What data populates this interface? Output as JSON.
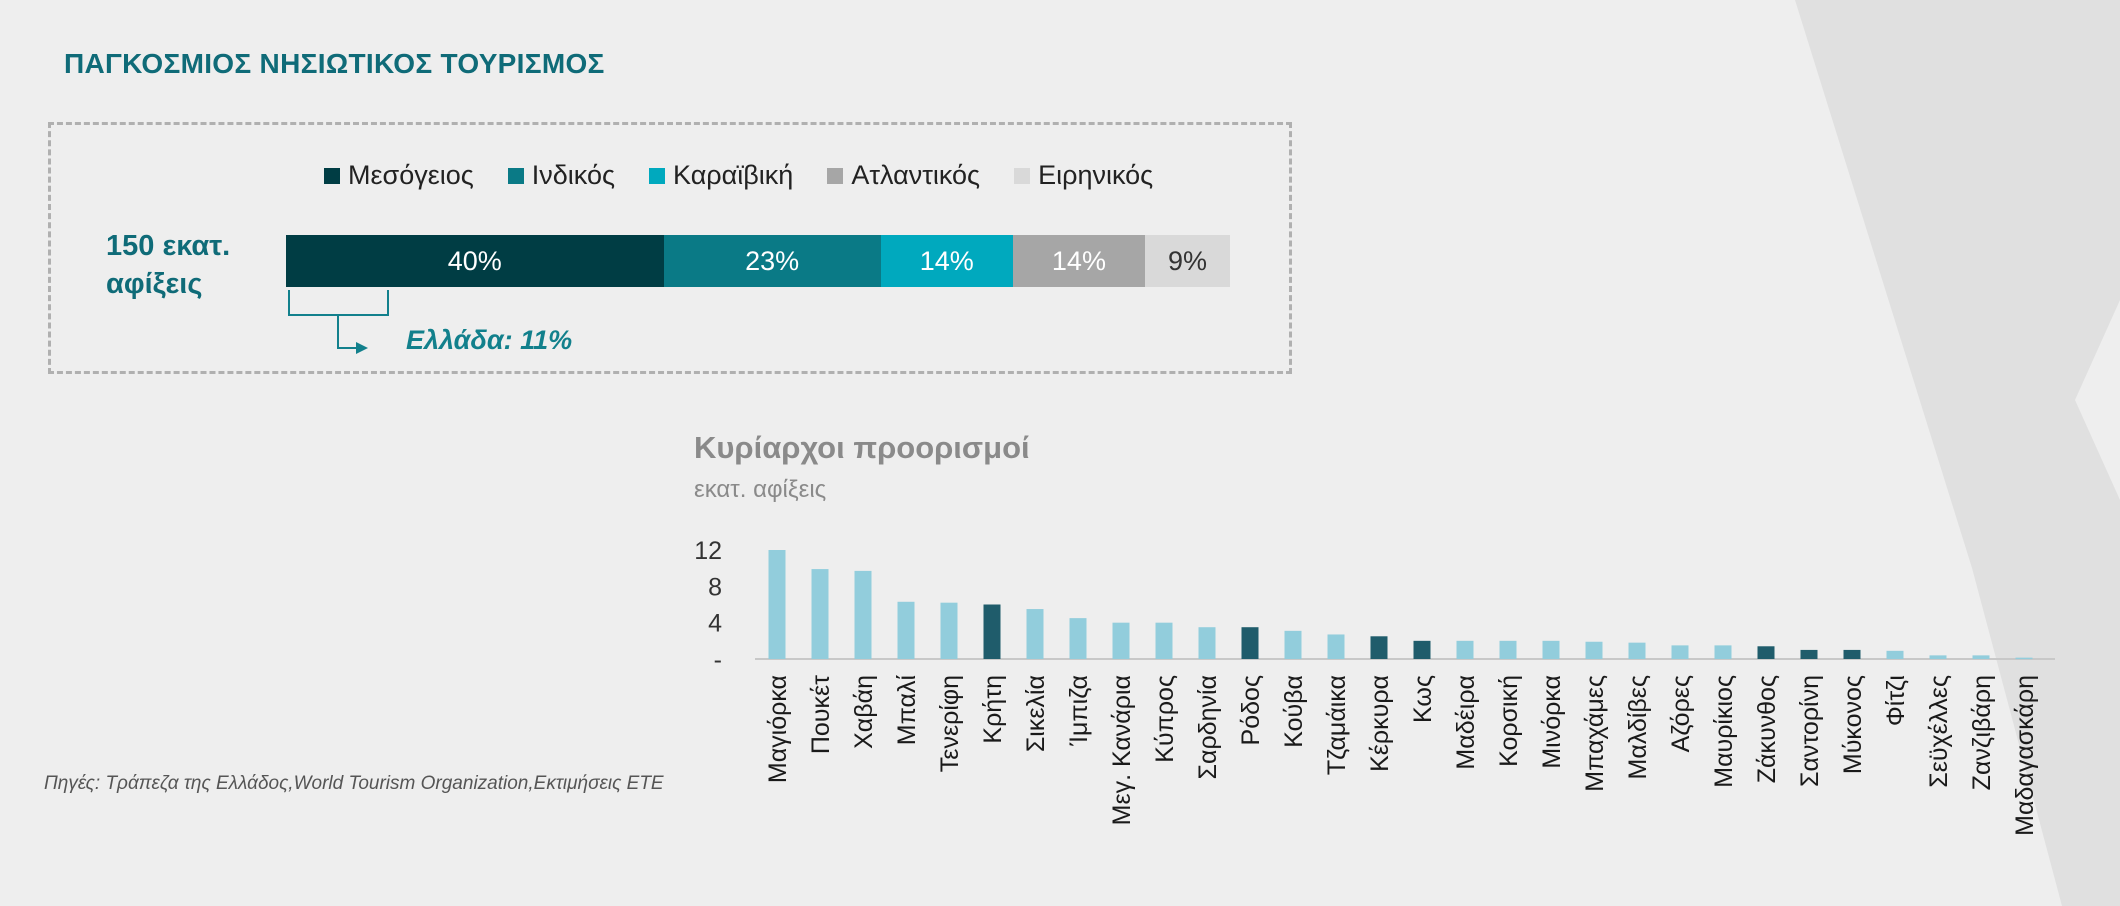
{
  "header": {
    "title": "ΠΑΓΚΟΣΜΙΟΣ ΝΗΣΙΩΤΙΚΟΣ ΤΟΥΡΙΣΜΟΣ"
  },
  "share_panel": {
    "total_label": "150 εκατ. αφίξεις",
    "greece_label": "Ελλάδα: 11%"
  },
  "destinations_panel": {
    "title": "Κυρίαρχοι προορισμοί",
    "subtitle": "εκατ. αφίξεις"
  },
  "footer": {
    "source": "Πηγές: Τράπεζα της Ελλάδος,World Tourism Organization,Εκτιμήσεις ΕΤΕ"
  },
  "colors": {
    "brand_teal": "#0f6b78",
    "bar_light": "#92cddc",
    "bar_greek": "#1f5c6b"
  },
  "chart_data": [
    {
      "type": "bar",
      "orientation": "horizontal-stacked-100",
      "title": "150 εκατ. αφίξεις",
      "categories": [
        "Μεσόγειος",
        "Ινδικός",
        "Καραϊβική",
        "Ατλαντικός",
        "Ειρηνικός"
      ],
      "values": [
        40,
        23,
        14,
        14,
        9
      ],
      "labels": [
        "40%",
        "23%",
        "14%",
        "14%",
        "9%"
      ],
      "colors": [
        "#003d44",
        "#0a7a86",
        "#00a9be",
        "#a6a6a6",
        "#d9d9d9"
      ],
      "legend": "top",
      "annotation": "Ελλάδα: 11%"
    },
    {
      "type": "bar",
      "title": "Κυρίαρχοι προορισμοί",
      "ylabel": "εκατ. αφίξεις",
      "ylim": [
        0,
        12
      ],
      "yticks": [
        0,
        4,
        8,
        12
      ],
      "ytick_labels": [
        "-",
        "4",
        "8",
        "12"
      ],
      "categories": [
        "Μαγιόρκα",
        "Πουκέτ",
        "Χαβάη",
        "Μπαλί",
        "Τενερίφη",
        "Κρήτη",
        "Σικελία",
        "Ίμπιζα",
        "Μεγ. Κανάρια",
        "Κύπρος",
        "Σαρδηνία",
        "Ρόδος",
        "Κούβα",
        "Τζαμάικα",
        "Κέρκυρα",
        "Κως",
        "Μαδέιρα",
        "Κορσική",
        "Μινόρκα",
        "Μπαχάμες",
        "Μαλδίβες",
        "Αζόρες",
        "Μαυρίκιος",
        "Ζάκυνθος",
        "Σαντορίνη",
        "Μύκονος",
        "Φίτζι",
        "Σεϋχέλλες",
        "Ζανζιβάρη",
        "Μαδαγασκάρη"
      ],
      "values": [
        12,
        9.9,
        9.7,
        6.3,
        6.2,
        6.0,
        5.5,
        4.5,
        4.0,
        4.0,
        3.5,
        3.5,
        3.1,
        2.7,
        2.5,
        2.0,
        2.0,
        2.0,
        2.0,
        1.9,
        1.8,
        1.5,
        1.5,
        1.4,
        1.0,
        1.0,
        0.9,
        0.4,
        0.4,
        0.15
      ],
      "highlight": [
        "Κρήτη",
        "Ρόδος",
        "Κέρκυρα",
        "Κως",
        "Ζάκυνθος",
        "Σαντορίνη",
        "Μύκονος"
      ],
      "grid": false,
      "legend": "none"
    }
  ]
}
